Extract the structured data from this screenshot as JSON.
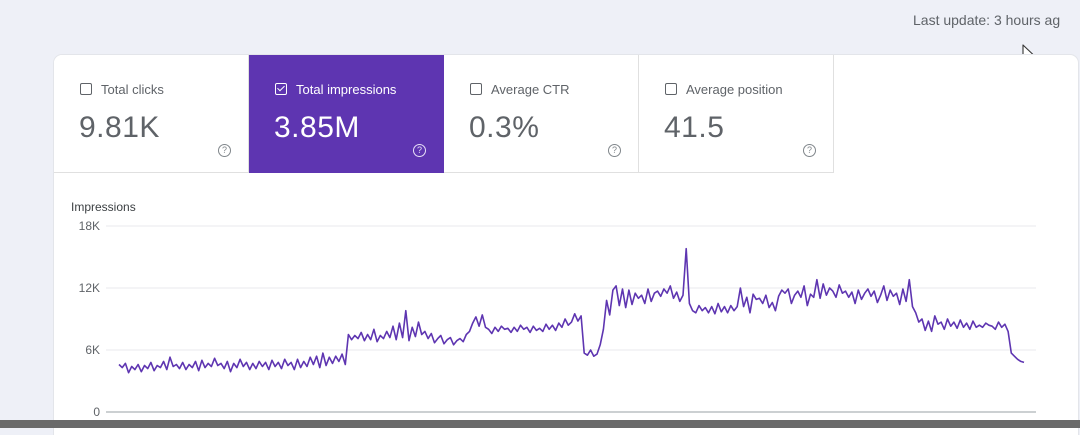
{
  "header": {
    "last_update": "Last update: 3 hours ag"
  },
  "metrics": [
    {
      "label": "Total clicks",
      "value": "9.81K",
      "checked": false,
      "icon": "help-icon"
    },
    {
      "label": "Total impressions",
      "value": "3.85M",
      "checked": true,
      "icon": "help-icon"
    },
    {
      "label": "Average CTR",
      "value": "0.3%",
      "checked": false,
      "icon": "help-icon"
    },
    {
      "label": "Average position",
      "value": "41.5",
      "checked": false,
      "icon": "help-icon"
    }
  ],
  "colors": {
    "accent": "#5e35b1",
    "line": "#5e35b1",
    "background": "#eef0f7"
  },
  "chart_data": {
    "type": "line",
    "ylabel": "Impressions",
    "yticks": [
      "18K",
      "12K",
      "6K",
      "0"
    ],
    "ylim": [
      0,
      18000
    ],
    "grid": true,
    "series": [
      {
        "values": [
          4600,
          4300,
          4700,
          3800,
          4400,
          4100,
          4600,
          3900,
          4500,
          4200,
          4800,
          4000,
          4500,
          4300,
          4900,
          4100,
          5300,
          4400,
          4600,
          4200,
          4800,
          4100,
          4600,
          4300,
          4900,
          4000,
          5000,
          4300,
          4700,
          4400,
          5200,
          4500,
          4700,
          4200,
          4900,
          3900,
          4700,
          4300,
          5100,
          4400,
          4800,
          4100,
          4700,
          4200,
          4900,
          4400,
          4800,
          4100,
          5000,
          4400,
          4800,
          4200,
          5100,
          4500,
          4800,
          4100,
          5100,
          4300,
          4900,
          4400,
          5300,
          4600,
          5400,
          4300,
          5700,
          4500,
          5300,
          4700,
          5400,
          4900,
          5600,
          4600,
          7500,
          7000,
          7400,
          7100,
          7700,
          6900,
          7500,
          7000,
          8000,
          6800,
          7400,
          7100,
          7800,
          7200,
          8300,
          7000,
          8600,
          7200,
          9800,
          6900,
          8200,
          7300,
          8700,
          7500,
          7800,
          7100,
          7600,
          6700,
          7100,
          7400,
          6600,
          7000,
          7200,
          6500,
          6900,
          7100,
          6800,
          7500,
          7800,
          8600,
          9200,
          8300,
          9400,
          8200,
          8000,
          7600,
          8200,
          7800,
          8300,
          8000,
          8100,
          7700,
          8200,
          7800,
          8400,
          8000,
          8200,
          7700,
          8300,
          7900,
          8100,
          7800,
          8500,
          8000,
          8400,
          7900,
          8600,
          8200,
          9000,
          8400,
          8700,
          9500,
          8800,
          9300,
          5700,
          5500,
          6000,
          5400,
          5600,
          6500,
          8000,
          10800,
          9400,
          11800,
          12200,
          10300,
          11900,
          10100,
          11800,
          10400,
          11500,
          11000,
          11300,
          10500,
          11900,
          10700,
          11500,
          11700,
          11200,
          11900,
          11500,
          12200,
          11000,
          11600,
          10700,
          11300,
          15800,
          10500,
          9800,
          9600,
          10300,
          9800,
          10100,
          9600,
          10200,
          9500,
          10500,
          9700,
          10200,
          9600,
          10300,
          9800,
          10200,
          12000,
          10200,
          11100,
          9600,
          11400,
          10900,
          11000,
          10500,
          11300,
          10100,
          10600,
          9800,
          11200,
          11800,
          11500,
          11900,
          10500,
          11300,
          11700,
          11100,
          12200,
          10300,
          11400,
          11100,
          12800,
          11000,
          12400,
          11300,
          12000,
          11700,
          11100,
          12300,
          11500,
          11700,
          11100,
          11600,
          10500,
          11800,
          10900,
          11500,
          11900,
          11200,
          11700,
          10600,
          11300,
          12200,
          10800,
          11800,
          11200,
          11500,
          10400,
          11900,
          10700,
          12800,
          10200,
          9600,
          8700,
          9000,
          7900,
          8800,
          7800,
          9300,
          8500,
          8700,
          8000,
          9000,
          8300,
          8700,
          8100,
          8900,
          8200,
          8600,
          8000,
          8800,
          8200,
          8400,
          8200,
          8600,
          8400,
          8300,
          8000,
          8700,
          8200,
          8500,
          7800,
          5700,
          5400,
          5100,
          4900,
          4800
        ]
      }
    ]
  }
}
